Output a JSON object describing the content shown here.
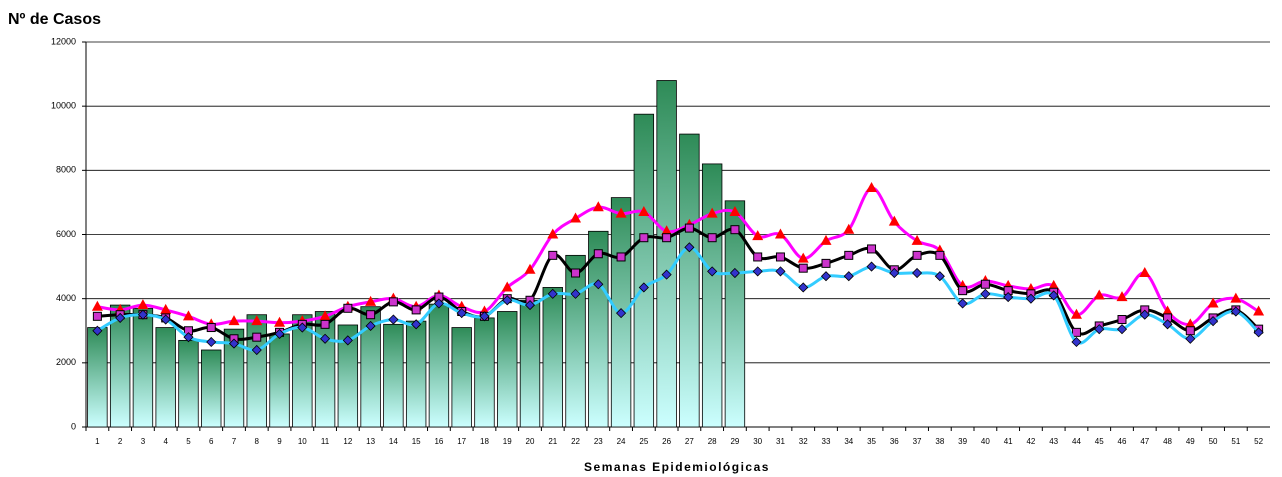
{
  "chart_data": {
    "type": "bar",
    "title": "Nº de Casos",
    "x_label": "Semanas Epidemiológicas",
    "categories": [
      "1",
      "2",
      "3",
      "4",
      "5",
      "6",
      "7",
      "8",
      "9",
      "10",
      "11",
      "12",
      "13",
      "14",
      "15",
      "16",
      "17",
      "18",
      "19",
      "20",
      "21",
      "22",
      "23",
      "24",
      "25",
      "26",
      "27",
      "28",
      "29",
      "30",
      "31",
      "32",
      "33",
      "34",
      "35",
      "36",
      "37",
      "38",
      "39",
      "40",
      "41",
      "42",
      "43",
      "44",
      "45",
      "46",
      "47",
      "48",
      "49",
      "50",
      "51",
      "52"
    ],
    "series": [
      {
        "type": "bar",
        "color": "#2e8b57",
        "gradient_to": "#ccffff",
        "values": [
          3100,
          3800,
          3700,
          3100,
          2700,
          2400,
          3050,
          3500,
          2900,
          3500,
          3600,
          3180,
          3750,
          3200,
          3300,
          3830,
          3100,
          3400,
          3600,
          3950,
          4350,
          5350,
          6100,
          7150,
          9750,
          10800,
          9130,
          8200,
          7050,
          null,
          null,
          null,
          null,
          null,
          null,
          null,
          null,
          null,
          null,
          null,
          null,
          null,
          null,
          null,
          null,
          null,
          null,
          null,
          null,
          null,
          null,
          null
        ]
      },
      {
        "type": "line",
        "color": "#ff00ff",
        "marker": "triangle",
        "marker_color": "#ff0000",
        "values": [
          3750,
          3650,
          3800,
          3650,
          3450,
          3200,
          3300,
          3300,
          3250,
          3300,
          3450,
          3750,
          3900,
          4000,
          3750,
          4100,
          3750,
          3600,
          4350,
          4900,
          6000,
          6500,
          6850,
          6650,
          6700,
          6100,
          6300,
          6650,
          6700,
          5950,
          6000,
          5250,
          5800,
          6150,
          7450,
          6400,
          5800,
          5500,
          4400,
          4550,
          4400,
          4300,
          4400,
          3500,
          4100,
          4050,
          4800,
          3600,
          3200,
          3850,
          4000,
          3600
        ]
      },
      {
        "type": "line",
        "color": "#000000",
        "marker": "square",
        "marker_color": "#cc33cc",
        "values": [
          3450,
          3500,
          3500,
          3400,
          3000,
          3100,
          2750,
          2800,
          2950,
          3200,
          3200,
          3700,
          3500,
          3900,
          3650,
          4050,
          3600,
          3450,
          4000,
          3950,
          5350,
          4800,
          5400,
          5300,
          5900,
          5900,
          6200,
          5900,
          6150,
          5300,
          5300,
          4950,
          5100,
          5350,
          5550,
          4900,
          5350,
          5350,
          4250,
          4450,
          4250,
          4150,
          4200,
          2950,
          3150,
          3350,
          3650,
          3400,
          3000,
          3400,
          3650,
          3050
        ]
      },
      {
        "type": "line",
        "color": "#33ccff",
        "marker": "diamond",
        "marker_color": "#3333cc",
        "values": [
          3000,
          3400,
          3500,
          3350,
          2800,
          2650,
          2600,
          2400,
          2900,
          3100,
          2750,
          2700,
          3150,
          3350,
          3200,
          3850,
          3550,
          3450,
          3950,
          3800,
          4150,
          4150,
          4450,
          3550,
          4350,
          4750,
          5600,
          4850,
          4800,
          4850,
          4850,
          4350,
          4700,
          4700,
          5000,
          4800,
          4800,
          4700,
          3850,
          4150,
          4050,
          4000,
          4100,
          2650,
          3050,
          3050,
          3500,
          3200,
          2750,
          3300,
          3600,
          2950
        ]
      }
    ],
    "ylim": [
      0,
      12000
    ],
    "yticks": [
      0,
      2000,
      4000,
      6000,
      8000,
      10000,
      12000
    ],
    "grid": true
  }
}
